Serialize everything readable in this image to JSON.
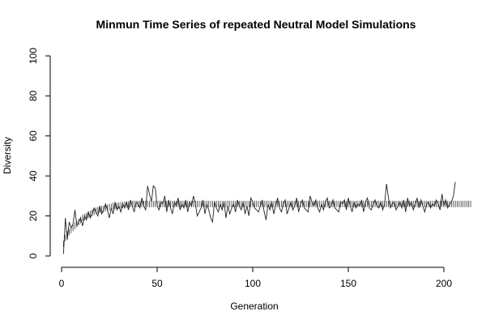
{
  "chart_data": {
    "type": "line",
    "title": "Minmun Time Series of repeated Neutral Model Simulations",
    "xlabel": "Generation",
    "ylabel": "Diversity",
    "xlim": [
      0,
      200
    ],
    "ylim": [
      0,
      100
    ],
    "x_ticks": [
      "0",
      "50",
      "100",
      "150",
      "200"
    ],
    "y_ticks": [
      "0",
      "20",
      "40",
      "60",
      "80",
      "100"
    ],
    "grid": false,
    "legend": "none",
    "series": [
      {
        "style": "solid-line",
        "x_start": 1,
        "values": [
          1,
          19,
          8,
          17,
          14,
          16,
          23,
          15,
          17,
          19,
          15,
          20,
          18,
          22,
          19,
          21,
          24,
          22,
          20,
          25,
          21,
          23,
          26,
          23,
          19,
          24,
          21,
          27,
          23,
          25,
          22,
          26,
          24,
          27,
          23,
          28,
          25,
          22,
          27,
          26,
          24,
          29,
          25,
          23,
          35,
          31,
          27,
          35,
          34,
          25,
          23,
          27,
          26,
          30,
          22,
          28,
          24,
          21,
          27,
          25,
          29,
          23,
          26,
          24,
          28,
          22,
          27,
          25,
          30,
          26,
          20,
          22,
          24,
          28,
          21,
          26,
          23,
          19,
          17,
          27,
          24,
          22,
          26,
          23,
          27,
          19,
          25,
          21,
          24,
          26,
          22,
          28,
          25,
          23,
          27,
          21,
          25,
          20,
          29,
          27,
          24,
          23,
          22,
          25,
          28,
          22,
          18,
          26,
          23,
          27,
          21,
          25,
          29,
          24,
          22,
          26,
          28,
          21,
          24,
          27,
          23,
          25,
          29,
          22,
          26,
          28,
          24,
          23,
          22,
          30,
          27,
          25,
          28,
          24,
          22,
          26,
          23,
          27,
          29,
          24,
          25,
          28,
          24,
          23,
          22,
          27,
          26,
          28,
          23,
          29,
          25,
          22,
          27,
          24,
          26,
          25,
          28,
          22,
          27,
          29,
          24,
          23,
          26,
          28,
          25,
          24,
          27,
          23,
          26,
          36,
          29,
          24,
          26,
          27,
          23,
          25,
          27,
          24,
          28,
          22,
          29,
          25,
          27,
          23,
          26,
          29,
          24,
          28,
          25,
          22,
          26,
          27,
          24,
          26,
          25,
          28,
          26,
          23,
          31,
          25,
          28,
          24,
          26,
          27,
          30,
          37
        ]
      },
      {
        "style": "interval",
        "x_start": 1,
        "centers": [
          6,
          9,
          11,
          12,
          13,
          14,
          15,
          16,
          17,
          18,
          19,
          19.5,
          20,
          20.5,
          21,
          21.5,
          22,
          22.5,
          23,
          23,
          23.5,
          23.5,
          24,
          24,
          24.5,
          24.5,
          25,
          25,
          25,
          25.2,
          25.4,
          25.5,
          25.6,
          25.7,
          25.8,
          25.9,
          26,
          26,
          26,
          26,
          26,
          26,
          26,
          26,
          26,
          26,
          26,
          26,
          26,
          26,
          26,
          26,
          26,
          26,
          26,
          26,
          26,
          26,
          26,
          26,
          26,
          26,
          26,
          26,
          26,
          26,
          26,
          26,
          26,
          26,
          26,
          26,
          26,
          26,
          26,
          26,
          26,
          26,
          26,
          26,
          26,
          26,
          26,
          26,
          26,
          26,
          26,
          26,
          26,
          26,
          26,
          26,
          26,
          26,
          26,
          26,
          26,
          26,
          26,
          26,
          26,
          26,
          26,
          26,
          26,
          26,
          26,
          26,
          26,
          26,
          26,
          26,
          26,
          26,
          26,
          26,
          26,
          26,
          26,
          26,
          26,
          26,
          26,
          26,
          26,
          26,
          26,
          26,
          26,
          26,
          26,
          26,
          26,
          26,
          26,
          26,
          26,
          26,
          26,
          26,
          26,
          26,
          26,
          26,
          26,
          26,
          26,
          26,
          26,
          26,
          26,
          26,
          26,
          26,
          26,
          26,
          26,
          26,
          26,
          26,
          26,
          26,
          26,
          26,
          26,
          26,
          26,
          26,
          26,
          26,
          26,
          26,
          26,
          26,
          26,
          26,
          26,
          26,
          26,
          26,
          26,
          26,
          26,
          26,
          26,
          26,
          26,
          26,
          26,
          26,
          26,
          26,
          26,
          26,
          26,
          26,
          26,
          26,
          26,
          26,
          26,
          26,
          26,
          26,
          26,
          26,
          26,
          26,
          26,
          26,
          26,
          26,
          26,
          26
        ],
        "half_width": 1.6
      }
    ]
  }
}
